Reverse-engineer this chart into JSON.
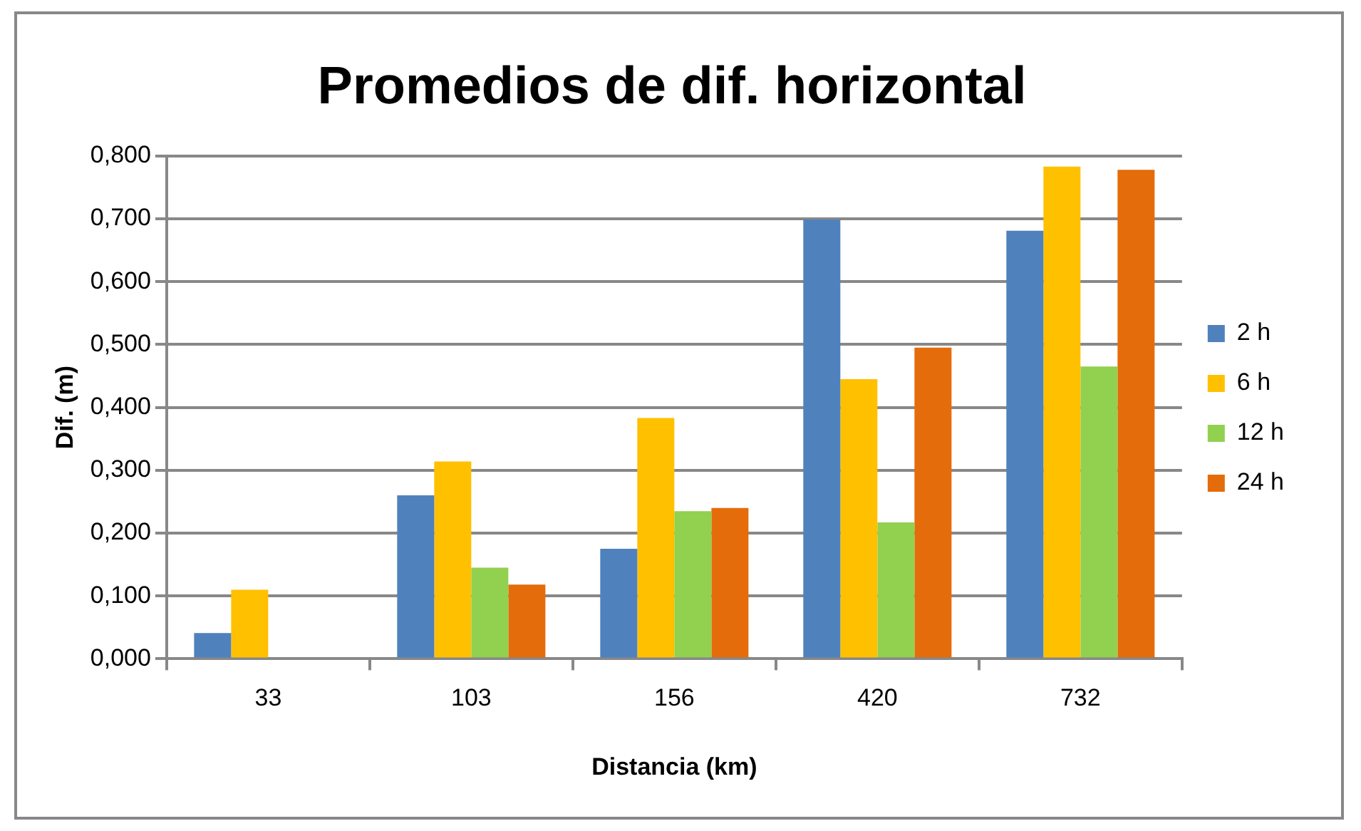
{
  "chart_data": {
    "type": "bar",
    "title": "Promedios de dif. horizontal",
    "xlabel": "Distancia (km)",
    "ylabel": "Dif. (m)",
    "categories": [
      "33",
      "103",
      "156",
      "420",
      "732"
    ],
    "series": [
      {
        "name": "2 h",
        "color": "#4f81bd",
        "values": [
          0.041,
          0.26,
          0.175,
          0.699,
          0.681
        ]
      },
      {
        "name": "6 h",
        "color": "#ffc000",
        "values": [
          0.11,
          0.314,
          0.383,
          0.445,
          0.783
        ]
      },
      {
        "name": "12 h",
        "color": "#92d050",
        "values": [
          null,
          0.145,
          0.235,
          0.217,
          0.465
        ]
      },
      {
        "name": "24 h",
        "color": "#e46c0a",
        "values": [
          null,
          0.118,
          0.24,
          0.495,
          0.778
        ]
      }
    ],
    "ylim": [
      0,
      0.8
    ],
    "yticks": [
      {
        "value": 0,
        "label": "0,000"
      },
      {
        "value": 0.1,
        "label": "0,100"
      },
      {
        "value": 0.2,
        "label": "0,200"
      },
      {
        "value": 0.3,
        "label": "0,300"
      },
      {
        "value": 0.4,
        "label": "0,400"
      },
      {
        "value": 0.5,
        "label": "0,500"
      },
      {
        "value": 0.6,
        "label": "0,600"
      },
      {
        "value": 0.7,
        "label": "0,700"
      },
      {
        "value": 0.8,
        "label": "0,800"
      }
    ],
    "grid": "y",
    "legend": "right"
  }
}
